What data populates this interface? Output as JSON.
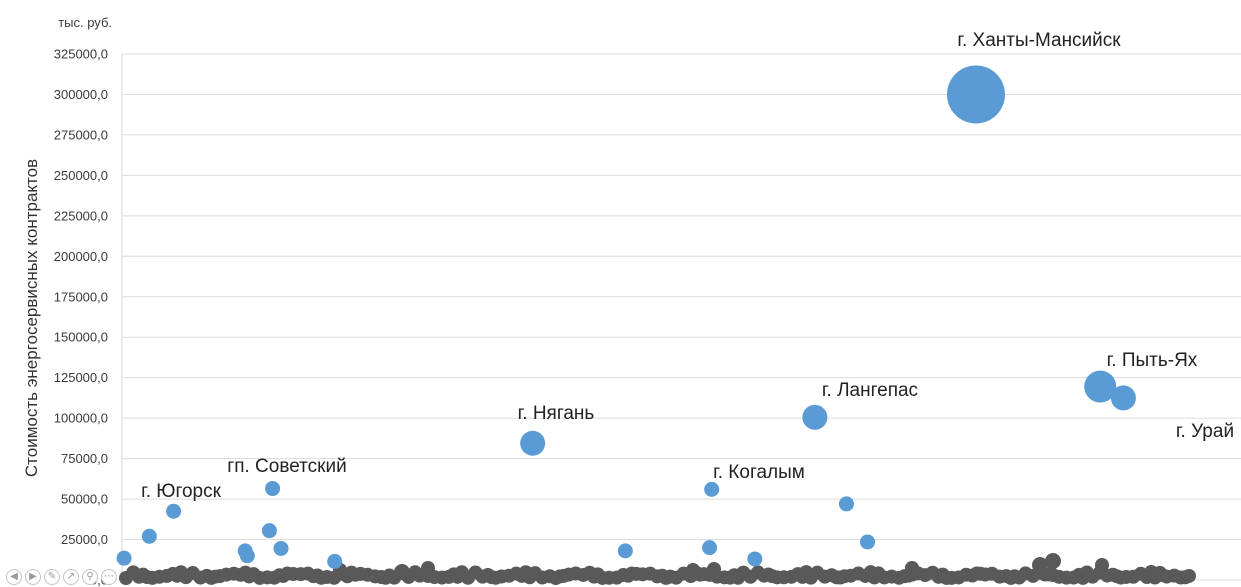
{
  "chart_data": {
    "type": "scatter",
    "unit_label": "тыс. руб.",
    "ylabel": "Стоимость энергосервисных контрактов",
    "xlabel": "",
    "ylim": [
      0,
      325000
    ],
    "y_ticks": [
      "0,0",
      "25000,0",
      "50000,0",
      "75000,0",
      "100000,0",
      "125000,0",
      "150000,0",
      "175000,0",
      "200000,0",
      "225000,0",
      "250000,0",
      "275000,0",
      "300000,0",
      "325000,0"
    ],
    "grid": true,
    "xlim": [
      0,
      100
    ],
    "series": [
      {
        "color": "#5b9bd5",
        "points": [
          {
            "x": 0.2,
            "y": 13500,
            "size": 1
          },
          {
            "x": 2.6,
            "y": 27000,
            "size": 1
          },
          {
            "x": 4.9,
            "y": 42500,
            "size": 1
          },
          {
            "x": 11.7,
            "y": 18000,
            "size": 1
          },
          {
            "x": 11.9,
            "y": 15000,
            "size": 1
          },
          {
            "x": 14.0,
            "y": 30500,
            "size": 1
          },
          {
            "x": 14.3,
            "y": 56500,
            "size": 1
          },
          {
            "x": 15.1,
            "y": 19500,
            "size": 1
          },
          {
            "x": 20.2,
            "y": 11500,
            "size": 1
          },
          {
            "x": 39.0,
            "y": 84500,
            "size": 2
          },
          {
            "x": 47.8,
            "y": 18000,
            "size": 1
          },
          {
            "x": 55.8,
            "y": 20000,
            "size": 1
          },
          {
            "x": 56.0,
            "y": 56000,
            "size": 1
          },
          {
            "x": 60.1,
            "y": 13000,
            "size": 1
          },
          {
            "x": 65.8,
            "y": 100500,
            "size": 2
          },
          {
            "x": 68.8,
            "y": 47000,
            "size": 1
          },
          {
            "x": 70.8,
            "y": 23500,
            "size": 1
          },
          {
            "x": 81.1,
            "y": 300000,
            "size": 5
          },
          {
            "x": 92.9,
            "y": 119500,
            "size": 3
          },
          {
            "x": 95.1,
            "y": 112500,
            "size": 2
          }
        ]
      }
    ],
    "annotations": [
      {
        "text": "г. Ханты-Мансийск",
        "x": 81.1,
        "y": 300000
      },
      {
        "text": "г. Пыть-Ях",
        "x": 92.9,
        "y": 119500
      },
      {
        "text": "г. Урай",
        "x": 95.1,
        "y": 112500
      },
      {
        "text": "г. Лангепас",
        "x": 65.8,
        "y": 100500
      },
      {
        "text": "г. Нягань",
        "x": 39.0,
        "y": 84500
      },
      {
        "text": "г. Когалым",
        "x": 56.0,
        "y": 56000
      },
      {
        "text": "гп. Советский",
        "x": 14.3,
        "y": 56500
      },
      {
        "text": "г. Югорск",
        "x": 4.9,
        "y": 42500
      }
    ]
  },
  "toolbar": {
    "icons": [
      "prev-icon",
      "next-icon",
      "edit-icon",
      "share-icon",
      "zoom-icon",
      "more-icon"
    ]
  }
}
